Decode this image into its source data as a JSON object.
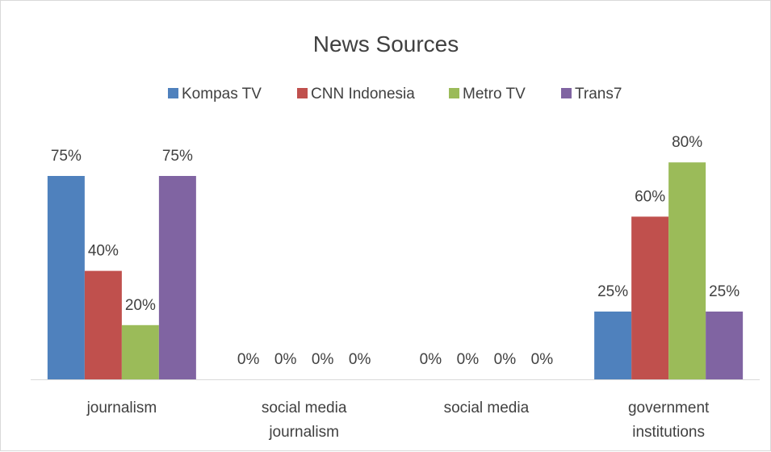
{
  "chart_data": {
    "type": "bar",
    "title": "News Sources",
    "categories": [
      [
        "journalism"
      ],
      [
        "social media",
        "journalism"
      ],
      [
        "social media"
      ],
      [
        "government",
        "institutions"
      ]
    ],
    "series": [
      {
        "name": "Kompas TV",
        "color": "#4f81bd",
        "values": [
          75,
          0,
          0,
          25
        ]
      },
      {
        "name": "CNN Indonesia",
        "color": "#c0504d",
        "values": [
          40,
          0,
          0,
          60
        ]
      },
      {
        "name": "Metro TV",
        "color": "#9bbb59",
        "values": [
          20,
          0,
          0,
          80
        ]
      },
      {
        "name": "Trans7",
        "color": "#8064a2",
        "values": [
          75,
          0,
          0,
          25
        ]
      }
    ],
    "value_format": "percent",
    "ylim": [
      0,
      100
    ],
    "legend_position": "top",
    "grid": false,
    "axis_line_color": "#d9d9d9"
  }
}
